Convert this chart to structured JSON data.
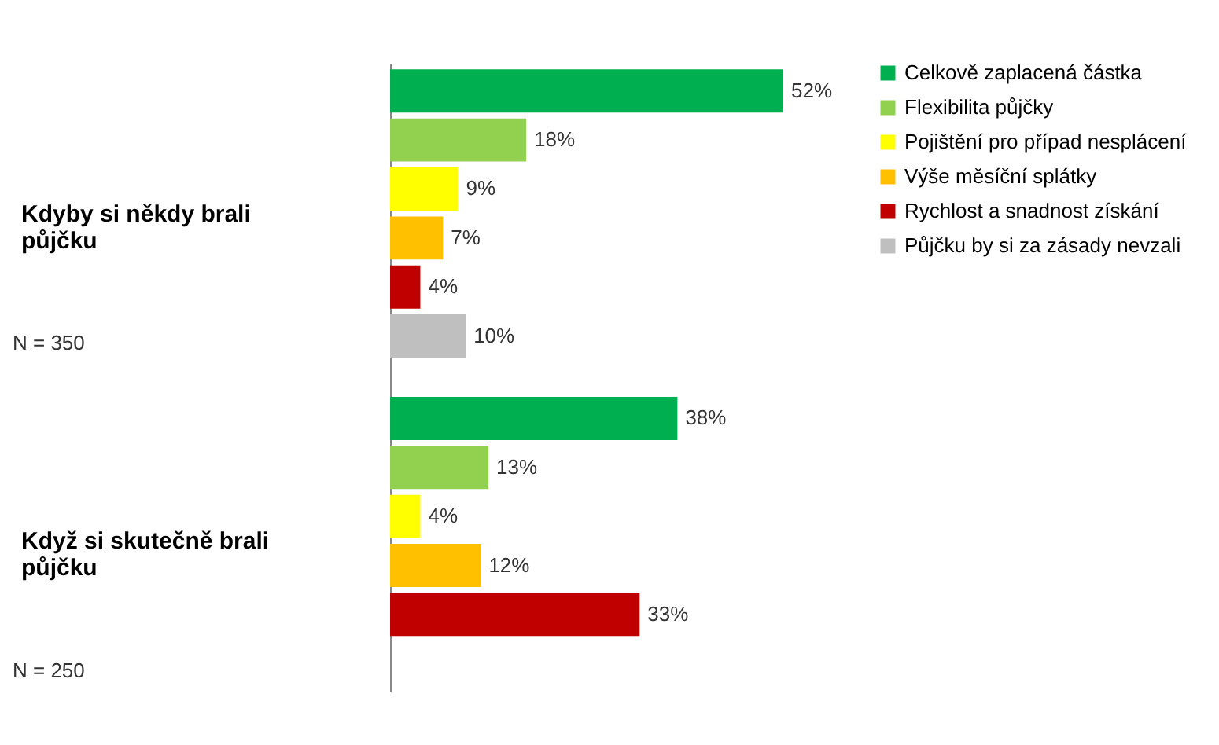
{
  "chart_data": {
    "type": "bar",
    "orientation": "horizontal",
    "legend": "right",
    "grid": false,
    "categories": [
      "Kdyby si někdy brali půjčku",
      "Když si skutečně brali půjčku"
    ],
    "series": [
      {
        "name": "Celkově zaplacená částka",
        "color": "#00b050",
        "values": [
          52,
          38
        ],
        "value_labels": [
          "52%",
          "38%"
        ]
      },
      {
        "name": "Flexibilita půjčky",
        "color": "#92d050",
        "values": [
          18,
          13
        ],
        "value_labels": [
          "18%",
          "13%"
        ]
      },
      {
        "name": "Pojištění pro případ nesplácení",
        "color": "#ffff00",
        "values": [
          9,
          4
        ],
        "value_labels": [
          "9%",
          "4%"
        ]
      },
      {
        "name": "Výše měsíční splátky",
        "color": "#ffc000",
        "values": [
          7,
          12
        ],
        "value_labels": [
          "7%",
          "12%"
        ]
      },
      {
        "name": "Rychlost a snadnost získání",
        "color": "#c00000",
        "values": [
          4,
          33
        ],
        "value_labels": [
          "4%",
          "33%"
        ]
      },
      {
        "name": "Půjčku by si za zásady nevzali",
        "color": "#bfbfbf",
        "values": [
          10,
          null
        ],
        "value_labels": [
          "10%",
          null
        ]
      }
    ],
    "annotations": [
      "N = 350",
      "N = 250"
    ]
  }
}
